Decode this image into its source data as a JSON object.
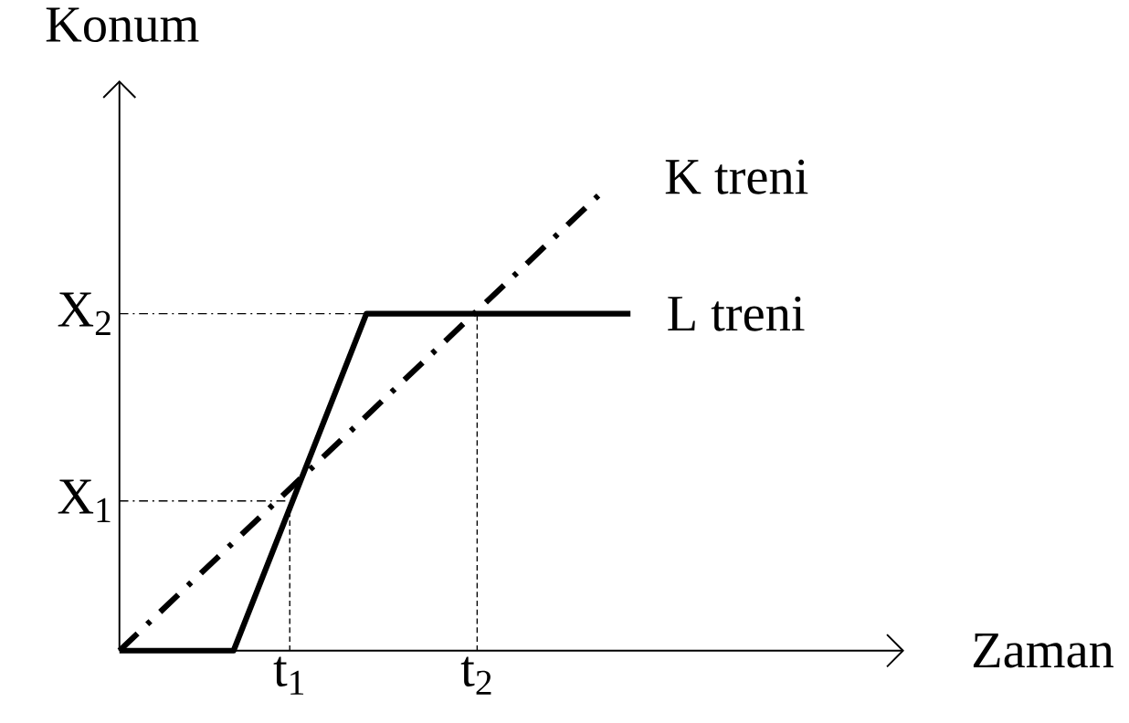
{
  "chart_data": {
    "type": "line",
    "xlabel": "Zaman",
    "ylabel": "Konum",
    "series": [
      {
        "name": "K treni",
        "color": "#000000",
        "line_style": "dashdot",
        "x": [
          0,
          2.84
        ],
        "values": [
          0,
          3.07
        ]
      },
      {
        "name": "L treni",
        "color": "#000000",
        "line_style": "solid",
        "x": [
          0,
          0.67,
          1.45,
          3.0
        ],
        "values": [
          0,
          0,
          2.25,
          2.25
        ]
      }
    ],
    "xlim": [
      0,
      4.6
    ],
    "ylim": [
      0,
      3.8
    ],
    "xticks": [
      {
        "value": 1,
        "label": "t$_{1}$"
      },
      {
        "value": 2.1,
        "label": "t$_{2}$"
      }
    ],
    "yticks": [
      {
        "value": 1,
        "label": "X$_{1}$"
      },
      {
        "value": 2.25,
        "label": "X$_{2}$"
      }
    ],
    "ref_lines": [
      {
        "axis": "x",
        "value": 1,
        "line_style": "dashed"
      },
      {
        "axis": "x",
        "value": 2.1,
        "line_style": "dashed"
      },
      {
        "axis": "y",
        "value": 1,
        "line_style": "dashdot"
      },
      {
        "axis": "y",
        "value": 2.25,
        "line_style": "dashdot"
      }
    ],
    "marker": "none",
    "legend": false
  }
}
